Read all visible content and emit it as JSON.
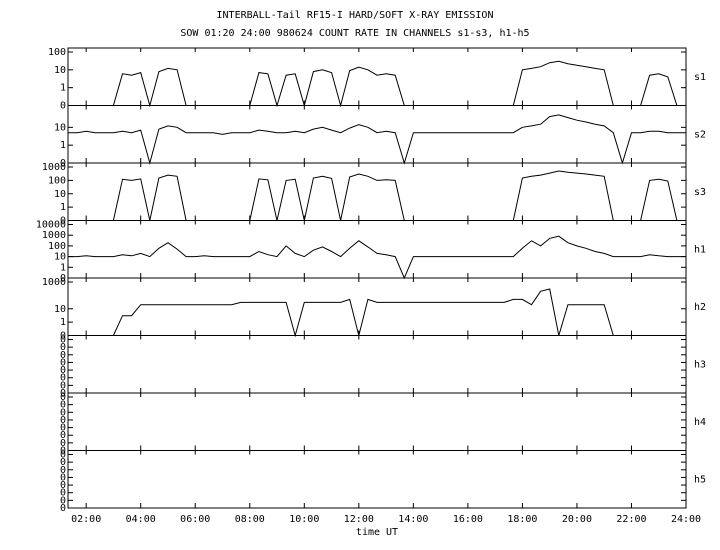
{
  "chart_data": {
    "type": "line",
    "title": "INTERBALL-Tail RF15-I HARD/SOFT X-RAY EMISSION",
    "subtitle": "SOW 01:20 24:00 980624  COUNT RATE IN CHANNELS s1-s3, h1-h5",
    "x_label": "time UT",
    "xlim": [
      "01:20",
      "24:00"
    ],
    "xticks": [
      "02:00",
      "04:00",
      "06:00",
      "08:00",
      "10:00",
      "12:00",
      "14:00",
      "16:00",
      "18:00",
      "20:00",
      "22:00",
      "24:00"
    ],
    "x": [
      "01:20",
      "01:40",
      "02:00",
      "02:20",
      "02:40",
      "03:00",
      "03:20",
      "03:40",
      "04:00",
      "04:20",
      "04:40",
      "05:00",
      "05:20",
      "05:40",
      "06:00",
      "06:20",
      "06:40",
      "07:00",
      "07:20",
      "07:40",
      "08:00",
      "08:20",
      "08:40",
      "09:00",
      "09:20",
      "09:40",
      "10:00",
      "10:20",
      "10:40",
      "11:00",
      "11:20",
      "11:40",
      "12:00",
      "12:20",
      "12:40",
      "13:00",
      "13:20",
      "13:40",
      "14:00",
      "14:20",
      "14:40",
      "15:00",
      "15:20",
      "15:40",
      "16:00",
      "16:20",
      "16:40",
      "17:00",
      "17:20",
      "17:40",
      "18:00",
      "18:20",
      "18:40",
      "19:00",
      "19:20",
      "19:40",
      "20:00",
      "20:20",
      "20:40",
      "21:00",
      "21:20",
      "21:40",
      "22:00",
      "22:20",
      "22:40",
      "23:00",
      "23:20",
      "23:40",
      "24:00"
    ],
    "color": "#000000",
    "panels": [
      {
        "name": "s1",
        "yscale": "log-zero",
        "ylim": [
          0,
          100
        ],
        "yticks": [
          0,
          1,
          10,
          100
        ],
        "values": [
          0,
          0,
          0,
          0,
          0,
          0,
          6,
          5,
          7,
          0,
          8,
          12,
          10,
          0,
          0,
          0,
          0,
          0,
          0,
          0,
          0,
          7,
          6,
          0,
          5,
          6,
          0,
          8,
          10,
          7,
          0,
          9,
          14,
          10,
          5,
          6,
          5,
          0,
          0,
          0,
          0,
          0,
          0,
          0,
          0,
          0,
          0,
          0,
          0,
          0,
          10,
          12,
          15,
          25,
          30,
          22,
          18,
          15,
          12,
          10,
          0,
          0,
          0,
          0,
          5,
          6,
          4,
          0,
          0
        ]
      },
      {
        "name": "s2",
        "yscale": "log-zero",
        "ylim": [
          0,
          100
        ],
        "yticks": [
          0,
          1,
          10
        ],
        "values": [
          5,
          5,
          6,
          5,
          5,
          5,
          6,
          5,
          7,
          0,
          8,
          12,
          10,
          5,
          5,
          5,
          5,
          4,
          5,
          5,
          5,
          7,
          6,
          5,
          5,
          6,
          5,
          8,
          10,
          7,
          5,
          9,
          14,
          10,
          5,
          6,
          5,
          0,
          5,
          5,
          5,
          5,
          5,
          5,
          5,
          5,
          5,
          5,
          5,
          5,
          10,
          12,
          15,
          40,
          50,
          35,
          25,
          20,
          15,
          12,
          5,
          0,
          5,
          5,
          6,
          6,
          5,
          5,
          5
        ]
      },
      {
        "name": "s3",
        "yscale": "log-zero",
        "ylim": [
          0,
          1000
        ],
        "yticks": [
          0,
          1,
          10,
          100,
          1000
        ],
        "values": [
          0,
          0,
          0,
          0,
          0,
          0,
          120,
          100,
          130,
          0,
          150,
          250,
          200,
          0,
          0,
          0,
          0,
          0,
          0,
          0,
          0,
          130,
          110,
          0,
          100,
          120,
          0,
          150,
          200,
          140,
          0,
          180,
          300,
          200,
          100,
          110,
          100,
          0,
          0,
          0,
          0,
          0,
          0,
          0,
          0,
          0,
          0,
          0,
          0,
          0,
          150,
          200,
          250,
          350,
          500,
          400,
          350,
          300,
          250,
          200,
          0,
          0,
          0,
          0,
          100,
          120,
          90,
          0,
          0
        ]
      },
      {
        "name": "h1",
        "yscale": "log-zero",
        "ylim": [
          0,
          10000
        ],
        "yticks": [
          0,
          1,
          10,
          100,
          1000,
          10000
        ],
        "values": [
          10,
          10,
          12,
          10,
          10,
          10,
          15,
          12,
          20,
          10,
          60,
          200,
          50,
          10,
          10,
          12,
          10,
          10,
          10,
          10,
          10,
          30,
          15,
          10,
          100,
          20,
          10,
          40,
          80,
          30,
          10,
          60,
          300,
          80,
          20,
          15,
          10,
          0,
          10,
          10,
          10,
          10,
          10,
          10,
          10,
          10,
          10,
          10,
          10,
          10,
          60,
          300,
          100,
          500,
          800,
          200,
          100,
          60,
          30,
          20,
          10,
          10,
          10,
          10,
          15,
          12,
          10,
          10,
          10
        ]
      },
      {
        "name": "h2",
        "yscale": "log-zero",
        "ylim": [
          0,
          1000
        ],
        "yticks": [
          0,
          1,
          10,
          1000
        ],
        "values": [
          0,
          0,
          0,
          0,
          0,
          0,
          3,
          3,
          20,
          20,
          20,
          20,
          20,
          20,
          20,
          20,
          20,
          20,
          20,
          30,
          30,
          30,
          30,
          30,
          30,
          0,
          30,
          30,
          30,
          30,
          30,
          50,
          0,
          50,
          30,
          30,
          30,
          30,
          30,
          30,
          30,
          30,
          30,
          30,
          30,
          30,
          30,
          30,
          30,
          50,
          50,
          20,
          200,
          300,
          0,
          20,
          20,
          20,
          20,
          20,
          0,
          0,
          0,
          0,
          0,
          0,
          0,
          0,
          0
        ]
      },
      {
        "name": "h3",
        "yscale": "linear",
        "ylim": [
          0,
          7
        ],
        "yticks": [
          {
            "value": 0,
            "label": "0"
          },
          {
            "value": 1,
            "label": "0"
          },
          {
            "value": 2,
            "label": "0"
          },
          {
            "value": 3,
            "label": "0"
          },
          {
            "value": 4,
            "label": "0"
          },
          {
            "value": 5,
            "label": "0"
          },
          {
            "value": 6,
            "label": "0"
          },
          {
            "value": 7,
            "label": "0"
          }
        ]
      },
      {
        "name": "h4",
        "yscale": "linear",
        "ylim": [
          0,
          7
        ],
        "yticks": [
          {
            "value": 0,
            "label": "0"
          },
          {
            "value": 1,
            "label": "0"
          },
          {
            "value": 2,
            "label": "0"
          },
          {
            "value": 3,
            "label": "0"
          },
          {
            "value": 4,
            "label": "0"
          },
          {
            "value": 5,
            "label": "0"
          },
          {
            "value": 6,
            "label": "0"
          },
          {
            "value": 7,
            "label": "0"
          }
        ]
      },
      {
        "name": "h5",
        "yscale": "linear",
        "ylim": [
          0,
          7
        ],
        "yticks": [
          {
            "value": 0,
            "label": "0"
          },
          {
            "value": 1,
            "label": "0"
          },
          {
            "value": 2,
            "label": "0"
          },
          {
            "value": 3,
            "label": "0"
          },
          {
            "value": 4,
            "label": "0"
          },
          {
            "value": 5,
            "label": "0"
          },
          {
            "value": 6,
            "label": "0"
          },
          {
            "value": 7,
            "label": "0"
          }
        ]
      }
    ]
  }
}
